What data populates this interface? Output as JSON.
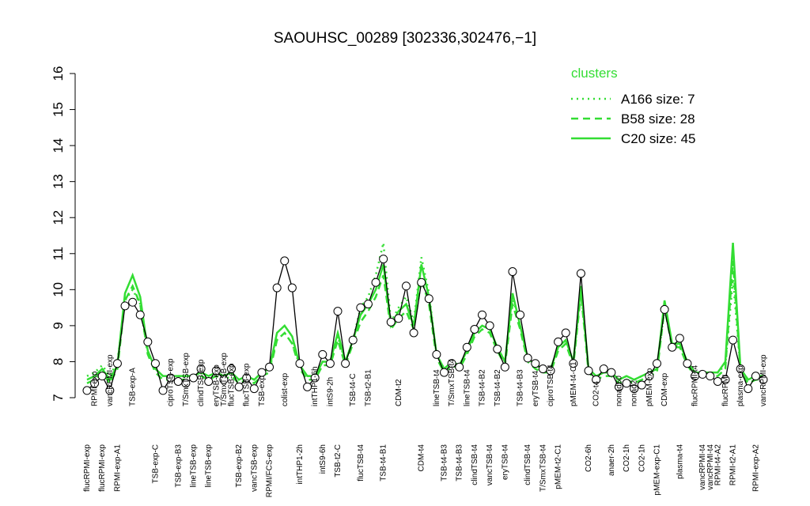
{
  "chart_data": {
    "type": "line",
    "title": "SAOUHSC_00289 [302336,302476,−1]",
    "ylim": [
      7,
      16
    ],
    "yticks": [
      7,
      8,
      9,
      10,
      11,
      12,
      13,
      14,
      15,
      16
    ],
    "top_labels": [
      null,
      "RPMI-exp",
      null,
      "vancRPMI-exp",
      null,
      null,
      "TSB-exp-A",
      null,
      null,
      null,
      null,
      "ciproTSB-exp",
      null,
      "T/SmxTSB-exp",
      null,
      "clindTSB-exp",
      null,
      "eryTSB-exp",
      "T/SmxTSB-exp",
      "flucTSB-exp",
      null,
      "flucTSB-exp",
      null,
      "TSB-exp",
      null,
      null,
      "colist-exp",
      null,
      null,
      null,
      "intTHP1-6h",
      null,
      "intS9-2h",
      null,
      null,
      "TSB-t4-C",
      null,
      "TSB-t2-B1",
      null,
      null,
      null,
      "CDM-t2",
      null,
      null,
      null,
      null,
      "lineTSB-t4",
      null,
      "T/SmxTSB-t4",
      null,
      "lineTSB-t4",
      null,
      "TSB-t4-B2",
      null,
      "TSB-t4-B2",
      null,
      null,
      "TSB-t4-B3",
      null,
      "eryTSB-t4",
      null,
      "ciproTSB-t4",
      null,
      null,
      "pMEM-t4-C1",
      null,
      null,
      "CO2-t4",
      null,
      null,
      "nonad50",
      null,
      "nonad2",
      null,
      "pMEM-exp",
      null,
      "CDM-exp",
      null,
      null,
      null,
      "flucRPMI-t4",
      null,
      null,
      null,
      "flucRPMI",
      null,
      "plasma-exp",
      null,
      null,
      "vancRPMI-exp"
    ],
    "categories": [
      "flucRPMI-exp",
      null,
      "flucRPMI-exp",
      null,
      "RPMI-exp-A1",
      null,
      null,
      null,
      null,
      "TSB-exp-C",
      null,
      null,
      "TSB-exp-B3",
      null,
      "lineTSB-exp",
      null,
      "lineTSB-exp",
      null,
      null,
      null,
      "TSB-exp-B2",
      null,
      "vancTSB-exp",
      null,
      "RPMI/FCS-exp",
      null,
      null,
      null,
      "intTHP1-2h",
      null,
      null,
      "intS9-6h",
      null,
      "TSB-t2-C",
      null,
      null,
      "flucTSB-t4",
      null,
      null,
      "TSB-t4-B1",
      null,
      null,
      null,
      null,
      "CDM-t4",
      null,
      null,
      "TSB-t4-B3",
      null,
      "TSB-t4-B3",
      null,
      "clindTSB-t4",
      null,
      "vancTSB-t4",
      null,
      "eryTSB-t4",
      null,
      null,
      "clindTSB-t4",
      null,
      "T/SmxTSB-t4",
      null,
      "pMEM-t2-C1",
      null,
      null,
      null,
      "CO2-6h",
      null,
      null,
      "anaer-2h",
      null,
      "CO2-1h",
      null,
      "CO2-1h",
      null,
      "pMEM-exp-C1",
      null,
      null,
      "plasma-t4",
      null,
      null,
      "vancRPMI-t4",
      "vancRPMI-t4",
      "RPMI-t4-A2",
      null,
      "RPMI-t2-A1",
      null,
      null,
      "RPMI-exp-A2",
      null
    ],
    "values": [
      7.2,
      7.4,
      7.6,
      7.2,
      7.95,
      9.55,
      9.65,
      9.3,
      8.55,
      7.95,
      7.2,
      7.55,
      7.45,
      7.4,
      7.55,
      7.8,
      7.45,
      7.75,
      7.5,
      7.8,
      7.3,
      7.55,
      7.25,
      7.7,
      7.85,
      10.05,
      10.8,
      10.05,
      7.95,
      7.3,
      7.55,
      8.2,
      7.95,
      9.4,
      7.95,
      8.6,
      9.5,
      9.6,
      10.2,
      10.85,
      9.1,
      9.2,
      10.1,
      8.8,
      10.2,
      9.75,
      8.2,
      7.7,
      7.95,
      7.85,
      8.4,
      8.9,
      9.3,
      9.0,
      8.35,
      7.85,
      10.5,
      9.3,
      8.1,
      7.95,
      7.8,
      7.75,
      8.55,
      8.8,
      7.95,
      10.45,
      7.75,
      7.5,
      7.8,
      7.7,
      7.3,
      7.4,
      7.25,
      7.35,
      7.6,
      7.95,
      9.45,
      8.4,
      8.65,
      7.95,
      7.6,
      7.65,
      7.6,
      7.45,
      7.5,
      8.6,
      7.8,
      7.25,
      7.6,
      7.5
    ],
    "color": "#000000",
    "legend_title": "clusters",
    "series": [
      {
        "name": "A166 size: 7",
        "color": "#33dd33",
        "style": "dotted",
        "values": [
          7.6,
          7.7,
          7.9,
          7.6,
          8.0,
          9.7,
          10.0,
          9.6,
          8.2,
          7.8,
          7.6,
          7.6,
          7.6,
          7.6,
          7.6,
          7.7,
          7.6,
          7.7,
          7.6,
          7.7,
          7.5,
          7.6,
          7.5,
          7.7,
          7.8,
          8.6,
          8.8,
          8.5,
          7.9,
          7.6,
          7.6,
          8.0,
          8.0,
          8.7,
          8.0,
          8.6,
          9.5,
          9.8,
          10.4,
          11.3,
          9.1,
          9.5,
          9.8,
          9.1,
          10.9,
          9.9,
          8.2,
          7.8,
          8.0,
          7.9,
          8.3,
          8.8,
          9.0,
          8.9,
          8.4,
          8.0,
          9.8,
          9.0,
          8.1,
          7.9,
          7.8,
          7.8,
          8.4,
          8.6,
          8.0,
          10.0,
          7.8,
          7.6,
          7.7,
          7.7,
          7.5,
          7.6,
          7.5,
          7.6,
          7.7,
          7.8,
          9.5,
          8.5,
          8.4,
          8.0,
          7.7,
          7.7,
          7.7,
          7.7,
          7.9,
          10.3,
          7.8,
          7.5,
          7.6,
          7.6
        ]
      },
      {
        "name": "B58 size: 28",
        "color": "#33dd33",
        "style": "dashed",
        "values": [
          7.4,
          7.5,
          7.7,
          7.4,
          7.8,
          9.7,
          10.1,
          9.6,
          8.2,
          7.7,
          7.5,
          7.5,
          7.5,
          7.5,
          7.5,
          7.6,
          7.5,
          7.6,
          7.5,
          7.6,
          7.4,
          7.5,
          7.4,
          7.6,
          7.7,
          8.6,
          8.8,
          8.5,
          7.8,
          7.5,
          7.5,
          7.9,
          7.9,
          8.6,
          7.9,
          8.5,
          9.1,
          9.4,
          9.8,
          10.4,
          8.9,
          9.2,
          9.4,
          8.9,
          10.3,
          9.6,
          8.1,
          7.7,
          7.9,
          7.8,
          8.2,
          8.7,
          8.9,
          8.8,
          8.3,
          7.9,
          9.6,
          8.9,
          8.0,
          7.8,
          7.7,
          7.7,
          8.3,
          8.5,
          7.9,
          9.9,
          7.7,
          7.5,
          7.6,
          7.6,
          7.4,
          7.5,
          7.4,
          7.5,
          7.6,
          7.7,
          9.5,
          8.4,
          8.4,
          7.9,
          7.6,
          7.6,
          7.6,
          7.6,
          7.8,
          10.8,
          7.7,
          7.4,
          7.5,
          7.5
        ]
      },
      {
        "name": "C20 size: 45",
        "color": "#33dd33",
        "style": "solid",
        "values": [
          7.5,
          7.6,
          7.8,
          7.5,
          7.9,
          9.9,
          10.4,
          9.8,
          8.3,
          7.8,
          7.6,
          7.6,
          7.6,
          7.6,
          7.6,
          7.7,
          7.6,
          7.7,
          7.6,
          7.7,
          7.5,
          7.6,
          7.5,
          7.7,
          7.8,
          8.8,
          9.0,
          8.7,
          7.9,
          7.6,
          7.6,
          8.0,
          8.0,
          8.8,
          8.0,
          8.6,
          9.3,
          9.6,
          10.0,
          10.7,
          9.0,
          9.4,
          9.6,
          9.0,
          10.7,
          9.8,
          8.2,
          7.8,
          8.0,
          7.9,
          8.3,
          8.8,
          9.0,
          8.9,
          8.4,
          8.0,
          9.9,
          9.0,
          8.1,
          7.9,
          7.8,
          7.8,
          8.4,
          8.6,
          8.0,
          10.1,
          7.8,
          7.6,
          7.7,
          7.7,
          7.5,
          7.6,
          7.5,
          7.6,
          7.7,
          7.8,
          9.7,
          8.5,
          8.5,
          8.0,
          7.7,
          7.7,
          7.7,
          7.7,
          8.0,
          11.3,
          7.8,
          7.5,
          7.6,
          7.6
        ]
      }
    ]
  }
}
